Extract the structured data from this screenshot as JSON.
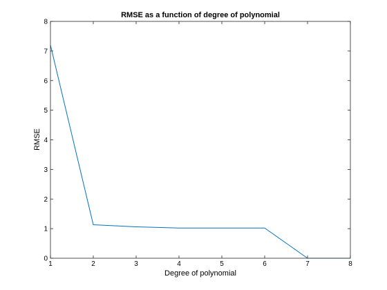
{
  "chart_data": {
    "type": "line",
    "title": "RMSE as a function of degree of polynomial",
    "xlabel": "Degree of polynomial",
    "ylabel": "RMSE",
    "xlim": [
      1,
      8
    ],
    "ylim": [
      0,
      8
    ],
    "xticks": [
      1,
      2,
      3,
      4,
      5,
      6,
      7,
      8
    ],
    "yticks": [
      0,
      1,
      2,
      3,
      4,
      5,
      6,
      7,
      8
    ],
    "grid": false,
    "box": true,
    "series": [
      {
        "color": "#0072bd",
        "x": [
          1,
          2,
          3,
          4,
          5,
          6,
          7,
          8
        ],
        "y": [
          7.2,
          1.13,
          1.06,
          1.02,
          1.02,
          1.02,
          0.0,
          0.0
        ]
      }
    ]
  }
}
